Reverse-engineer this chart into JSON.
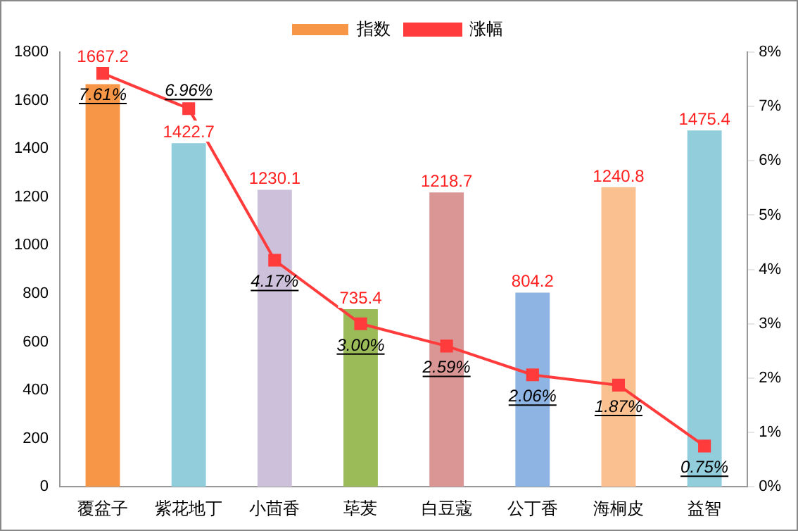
{
  "chart_data": {
    "type": "bar",
    "categories": [
      "覆盆子",
      "紫花地丁",
      "小茴香",
      "荜茇",
      "白豆蔻",
      "公丁香",
      "海桐皮",
      "益智"
    ],
    "series": [
      {
        "name": "指数",
        "color": "#f79646",
        "colors": [
          "#f79646",
          "#92cddc",
          "#ccc0da",
          "#9bbb59",
          "#d99694",
          "#8eb4e3",
          "#fac090",
          "#92cddc"
        ],
        "values": [
          1667.2,
          1422.7,
          1230.1,
          735.4,
          1218.7,
          804.2,
          1240.8,
          1475.4
        ],
        "value_labels": [
          "1667.2",
          "1422.7",
          "1230.1",
          "735.4",
          "1218.7",
          "804.2",
          "1240.8",
          "1475.4"
        ]
      },
      {
        "name": "涨幅",
        "type": "line",
        "axis": "y2",
        "color": "#ff3b3b",
        "values": [
          7.61,
          6.96,
          4.17,
          3.0,
          2.59,
          2.06,
          1.87,
          0.75
        ],
        "value_labels": [
          "7.61%",
          "6.96%",
          "4.17%",
          "3.00%",
          "2.59%",
          "2.06%",
          "1.87%",
          "0.75%"
        ]
      }
    ],
    "ylim": [
      0,
      1800
    ],
    "yticks": [
      0,
      200,
      400,
      600,
      800,
      1000,
      1200,
      1400,
      1600,
      1800
    ],
    "y2lim": [
      0,
      8
    ],
    "y2ticks": [
      {
        "value": 0,
        "label": "0%"
      },
      {
        "value": 1,
        "label": "1%"
      },
      {
        "value": 2,
        "label": "2%"
      },
      {
        "value": 3,
        "label": "3%"
      },
      {
        "value": 4,
        "label": "4%"
      },
      {
        "value": 5,
        "label": "5%"
      },
      {
        "value": 6,
        "label": "6%"
      },
      {
        "value": 7,
        "label": "7%"
      },
      {
        "value": 8,
        "label": "8%"
      }
    ],
    "legend": "top",
    "marker": "square",
    "grid": false
  }
}
